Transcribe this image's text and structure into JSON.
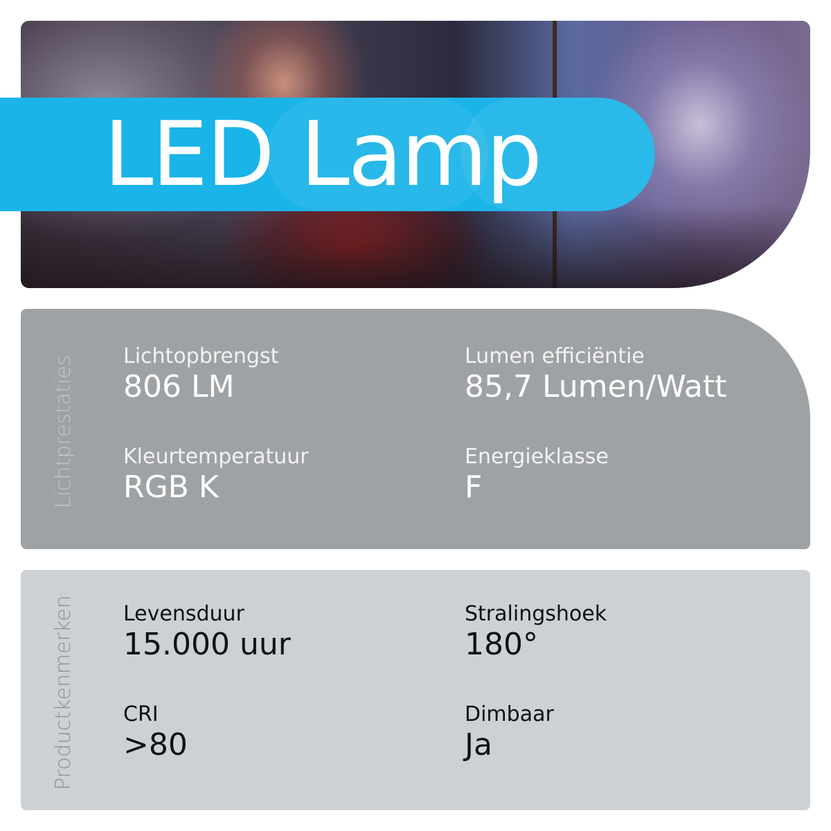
{
  "title": "LED Lamp",
  "colors": {
    "banner": "#1bb4e8",
    "panel1": "#9fa2a5",
    "panel2": "#cdd1d5"
  },
  "sections": [
    {
      "heading": "Lichtprestaties",
      "items": [
        {
          "label": "Lichtopbrengst",
          "value": "806 LM"
        },
        {
          "label": "Lumen efficiëntie",
          "value": "85,7 Lumen/Watt"
        },
        {
          "label": "Kleurtemperatuur",
          "value": "RGB K"
        },
        {
          "label": "Energieklasse",
          "value": "F"
        }
      ]
    },
    {
      "heading": "Productkenmerken",
      "items": [
        {
          "label": "Levensduur",
          "value": "15.000 uur"
        },
        {
          "label": "Stralingshoek",
          "value": "180°"
        },
        {
          "label": "CRI",
          "value": ">80"
        },
        {
          "label": "Dimbaar",
          "value": "Ja"
        }
      ]
    }
  ]
}
